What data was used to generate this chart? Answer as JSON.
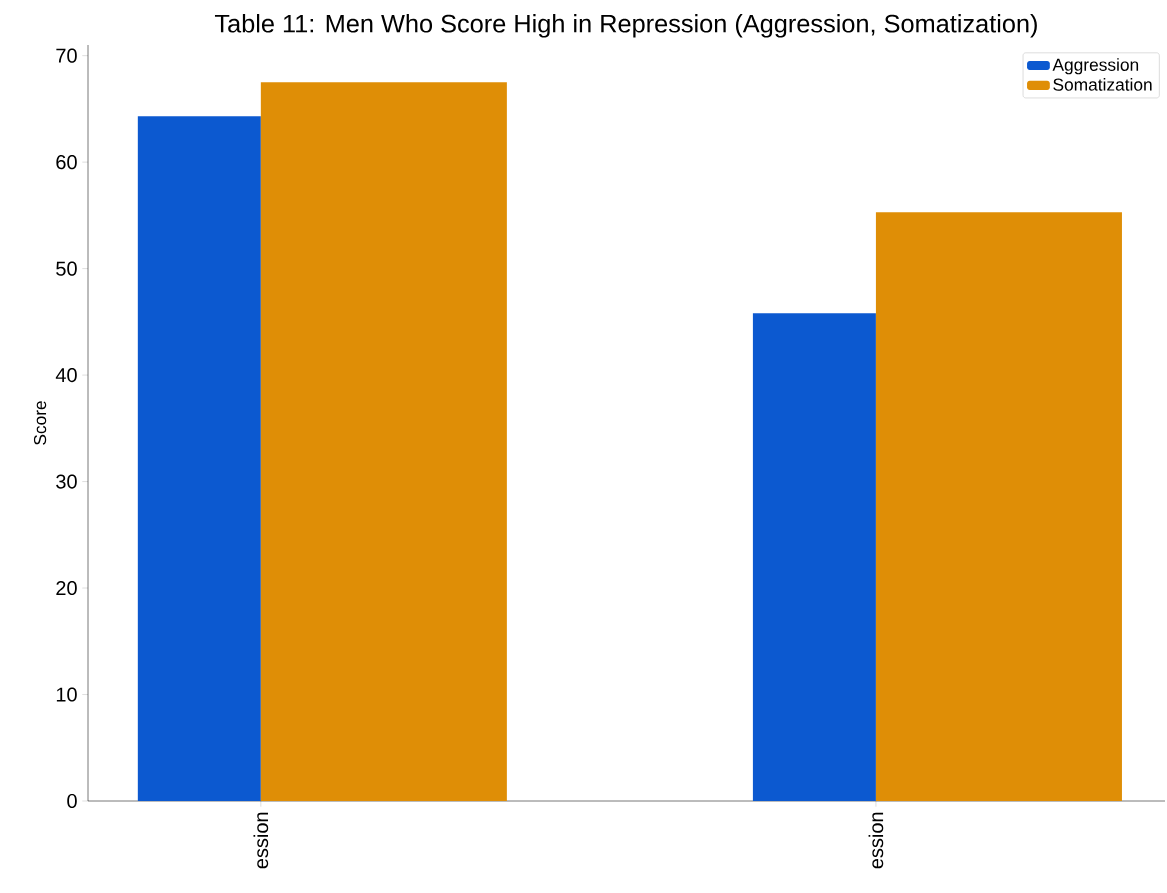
{
  "chart_data": {
    "type": "bar",
    "title": "Table 11: Men Who Score High in Repression (Aggression, Somatization)",
    "ylabel": "Score",
    "categories": [
      "ession",
      "ession"
    ],
    "series": [
      {
        "name": "Aggression",
        "color": "#0c59d0",
        "values": [
          64.3,
          45.8
        ]
      },
      {
        "name": "Somatization",
        "color": "#df8e06",
        "values": [
          67.5,
          55.3
        ]
      }
    ],
    "ylim": [
      0,
      71
    ],
    "yticks": [
      0,
      10,
      20,
      30,
      40,
      50,
      60,
      70
    ],
    "grid": false,
    "legend": "top right"
  }
}
